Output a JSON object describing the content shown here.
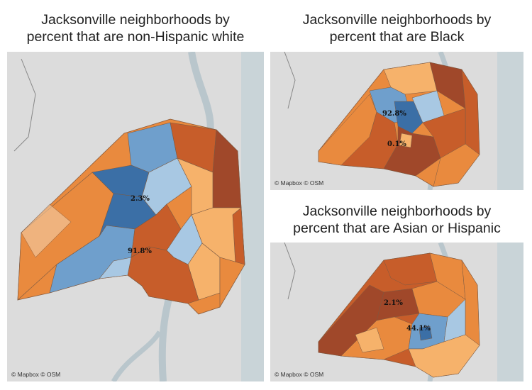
{
  "panels": {
    "white": {
      "title_line1": "Jacksonville neighborhoods by",
      "title_line2": "percent that are non-Hispanic white",
      "label_low": "2.3%",
      "label_high": "91.8%",
      "attribution": "© Mapbox © OSM"
    },
    "black": {
      "title_line1": "Jacksonville neighborhoods by",
      "title_line2": "percent that are Black",
      "label_high": "92.8%",
      "label_low": "0.1%",
      "attribution": "© Mapbox © OSM"
    },
    "asian_hispanic": {
      "title_line1": "Jacksonville neighborhoods by",
      "title_line2": "percent that are Asian or Hispanic",
      "label_low": "2.1%",
      "label_high": "44.1%",
      "attribution": "© Mapbox © OSM"
    }
  },
  "colors": {
    "basemap_land": "#dcdcdc",
    "basemap_water": "#b9c6cc",
    "ocean": "#c9d4d8",
    "scale_darkblue": "#3b6fa6",
    "scale_blue": "#6f9fcc",
    "scale_lightblue": "#a8c8e3",
    "scale_pale": "#f4d6b4",
    "scale_lightorange": "#f6b26b",
    "scale_orange": "#e98a3e",
    "scale_darkorange": "#c75d2a",
    "scale_brown": "#a0482a"
  }
}
